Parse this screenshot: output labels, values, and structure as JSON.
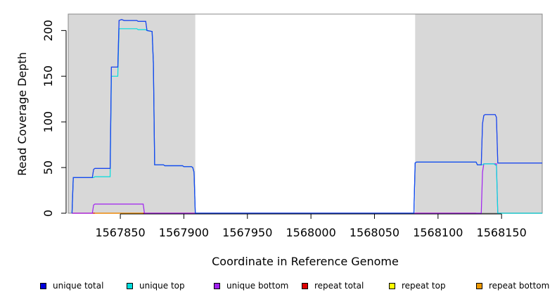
{
  "chart_data": {
    "type": "line",
    "xlabel": "Coordinate in Reference Genome",
    "ylabel": "Read Coverage Depth",
    "xlim": [
      1567809,
      1568182
    ],
    "ylim": [
      0,
      218
    ],
    "xticks": [
      "1567850",
      "1567900",
      "1567950",
      "1568000",
      "1568050",
      "1568100",
      "1568150"
    ],
    "yticks": [
      "0",
      "50",
      "100",
      "150",
      "200"
    ],
    "shaded_regions": [
      {
        "x0": 1567809,
        "x1": 1567909,
        "color": "#d8d8d8"
      },
      {
        "x0": 1568082,
        "x1": 1568182,
        "color": "#d8d8d8"
      }
    ],
    "series": [
      {
        "name": "unique total",
        "color": "#0000dd",
        "points": [
          [
            1567812,
            0
          ],
          [
            1567813,
            39
          ],
          [
            1567828,
            39
          ],
          [
            1567829,
            48
          ],
          [
            1567830,
            49
          ],
          [
            1567842,
            49
          ],
          [
            1567843,
            160
          ],
          [
            1567848,
            160
          ],
          [
            1567849,
            211
          ],
          [
            1567851,
            212
          ],
          [
            1567853,
            211
          ],
          [
            1567863,
            211
          ],
          [
            1567864,
            210
          ],
          [
            1567870,
            210
          ],
          [
            1567871,
            200
          ],
          [
            1567875,
            199
          ],
          [
            1567876,
            164
          ],
          [
            1567877,
            53
          ],
          [
            1567884,
            53
          ],
          [
            1567885,
            52
          ],
          [
            1567899,
            52
          ],
          [
            1567900,
            51
          ],
          [
            1567906,
            51
          ],
          [
            1567907,
            50
          ],
          [
            1567908,
            45
          ],
          [
            1567909,
            0
          ],
          [
            1568081,
            0
          ],
          [
            1568082,
            55
          ],
          [
            1568083,
            56
          ],
          [
            1568130,
            56
          ],
          [
            1568131,
            53
          ],
          [
            1568134,
            53
          ],
          [
            1568135,
            98
          ],
          [
            1568136,
            107
          ],
          [
            1568137,
            108
          ],
          [
            1568145,
            108
          ],
          [
            1568146,
            105
          ],
          [
            1568147,
            55
          ],
          [
            1568182,
            55
          ]
        ]
      },
      {
        "name": "unique top",
        "color": "#00dddd",
        "points": [
          [
            1567812,
            0
          ],
          [
            1567813,
            39
          ],
          [
            1567828,
            39
          ],
          [
            1567829,
            39
          ],
          [
            1567830,
            40
          ],
          [
            1567842,
            40
          ],
          [
            1567843,
            150
          ],
          [
            1567848,
            150
          ],
          [
            1567849,
            202
          ],
          [
            1567863,
            202
          ],
          [
            1567864,
            201
          ],
          [
            1567870,
            201
          ],
          [
            1567871,
            200
          ],
          [
            1567875,
            199
          ],
          [
            1567876,
            164
          ],
          [
            1567877,
            53
          ],
          [
            1567884,
            53
          ],
          [
            1567885,
            52
          ],
          [
            1567899,
            52
          ],
          [
            1567900,
            51
          ],
          [
            1567906,
            51
          ],
          [
            1567907,
            50
          ],
          [
            1567908,
            45
          ],
          [
            1567909,
            0
          ],
          [
            1568081,
            0
          ],
          [
            1568082,
            55
          ],
          [
            1568083,
            56
          ],
          [
            1568130,
            56
          ],
          [
            1568131,
            53
          ],
          [
            1568135,
            53
          ],
          [
            1568136,
            54
          ],
          [
            1568144,
            54
          ],
          [
            1568146,
            52
          ],
          [
            1568147,
            0
          ],
          [
            1568182,
            0
          ]
        ]
      },
      {
        "name": "unique bottom",
        "color": "#a020f0",
        "points": [
          [
            1567812,
            0
          ],
          [
            1567828,
            0
          ],
          [
            1567829,
            9
          ],
          [
            1567830,
            10
          ],
          [
            1567868,
            10
          ],
          [
            1567869,
            0
          ],
          [
            1568134,
            0
          ],
          [
            1568135,
            45
          ],
          [
            1568136,
            54
          ],
          [
            1568146,
            54
          ],
          [
            1568147,
            0
          ],
          [
            1568182,
            0
          ]
        ]
      },
      {
        "name": "repeat total",
        "color": "#dd0000",
        "points": [
          [
            1567812,
            0
          ],
          [
            1567909,
            0
          ],
          [
            1568081,
            0
          ],
          [
            1568130,
            0
          ]
        ]
      },
      {
        "name": "repeat top",
        "color": "#dddd00",
        "points": [
          [
            1568147,
            0
          ],
          [
            1568182,
            0
          ]
        ]
      },
      {
        "name": "repeat bottom",
        "color": "#ee9900",
        "points": [
          [
            1567830,
            0
          ],
          [
            1567868,
            0
          ]
        ]
      }
    ],
    "legend_placement": "bottom",
    "grid": false
  },
  "legend": [
    {
      "label": "unique total",
      "color": "#0000dd"
    },
    {
      "label": "unique top",
      "color": "#00dddd"
    },
    {
      "label": "unique bottom",
      "color": "#a020f0"
    },
    {
      "label": "repeat total",
      "color": "#dd0000"
    },
    {
      "label": "repeat top",
      "color": "#ffff00"
    },
    {
      "label": "repeat bottom",
      "color": "#ee9900"
    }
  ]
}
